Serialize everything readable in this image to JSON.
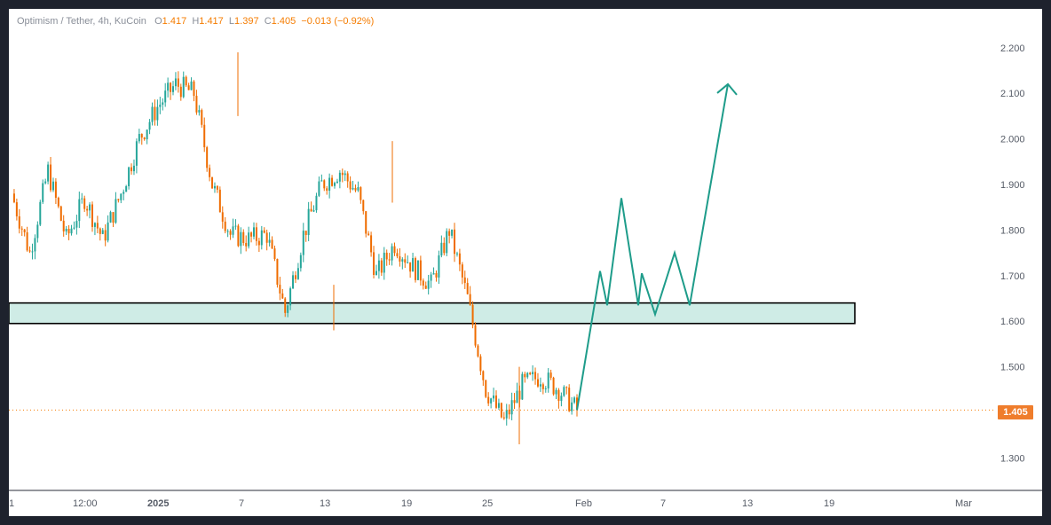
{
  "legend": {
    "symbol": "Optimism / Tether, 4h, KuCoin",
    "open_label": "O",
    "open": "1.417",
    "high_label": "H",
    "high": "1.417",
    "low_label": "L",
    "low": "1.397",
    "close_label": "C",
    "close": "1.405",
    "change": "−0.013 (−0.92%)"
  },
  "last_price": "1.405",
  "colors": {
    "up": "#26a69a",
    "down": "#ef6c00",
    "zone_fill": "#cfece6",
    "projection": "#1e9c8a",
    "price_line": "#f57c00",
    "badge": "#ef7d2c"
  },
  "chart_data": {
    "type": "candlestick",
    "title": "Optimism / Tether, 4h, KuCoin",
    "ylim": [
      1.28,
      2.22
    ],
    "y_ticks": [
      2.2,
      2.1,
      2.0,
      1.9,
      1.8,
      1.7,
      1.6,
      1.5,
      1.3
    ],
    "y_tick_labels": [
      "2.200",
      "2.100",
      "2.000",
      "1.900",
      "1.800",
      "1.700",
      "1.600",
      "1.500",
      "1.300"
    ],
    "x_tick_labels": [
      "1",
      "12:00",
      "2025",
      "7",
      "13",
      "19",
      "25",
      "Feb",
      "7",
      "13",
      "19",
      "Mar"
    ],
    "price_path": [
      [
        "Dec 31",
        1.88
      ],
      [
        "Jan 1",
        1.75
      ],
      [
        "Jan 2",
        1.93
      ],
      [
        "Jan 4",
        1.78
      ],
      [
        "Jan 5",
        1.87
      ],
      [
        "Jan 6",
        1.78
      ],
      [
        "Jan 7",
        1.88
      ],
      [
        "Jan 8",
        2.0
      ],
      [
        "Jan 9",
        2.07
      ],
      [
        "Jan 10",
        2.12
      ],
      [
        "Jan 11",
        2.1
      ],
      [
        "Jan 12",
        1.9
      ],
      [
        "Jan 13",
        1.79
      ],
      [
        "Jan 14",
        1.78
      ],
      [
        "Jan 15",
        1.79
      ],
      [
        "Jan 16",
        1.62
      ],
      [
        "Jan 17",
        1.79
      ],
      [
        "Jan 18",
        1.9
      ],
      [
        "Jan 19",
        1.93
      ],
      [
        "Jan 20",
        1.88
      ],
      [
        "Jan 21",
        1.7
      ],
      [
        "Jan 22",
        1.77
      ],
      [
        "Jan 23",
        1.72
      ],
      [
        "Jan 24",
        1.68
      ],
      [
        "Jan 25",
        1.8
      ],
      [
        "Jan 26",
        1.65
      ],
      [
        "Jan 27",
        1.45
      ],
      [
        "Jan 28",
        1.38
      ],
      [
        "Jan 29",
        1.46
      ],
      [
        "Jan 30",
        1.48
      ],
      [
        "Jan 31",
        1.45
      ],
      [
        "Feb 1",
        1.405
      ]
    ],
    "support_zone": [
      1.595,
      1.64
    ],
    "projection": [
      1.405,
      1.71,
      1.635,
      1.87,
      1.635,
      1.705,
      1.615,
      1.75,
      1.635,
      2.12
    ],
    "last_price": 1.405
  }
}
